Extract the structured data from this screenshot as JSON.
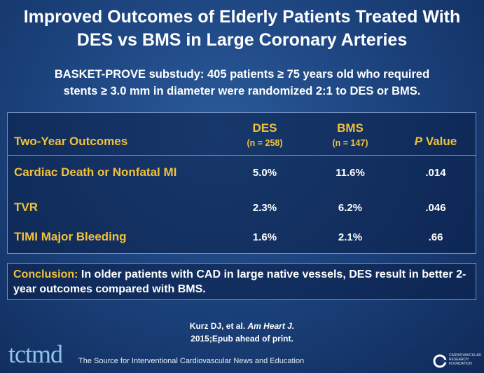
{
  "header": {
    "title_lines": [
      "Improved Outcomes of Elderly Patients Treated With",
      "DES vs BMS in Large Coronary Arteries"
    ],
    "subtitle_lines": [
      "BASKET-PROVE substudy: 405 patients ≥ 75 years old who required",
      "stents ≥ 3.0 mm in diameter were randomized 2:1 to DES or BMS."
    ]
  },
  "table": {
    "columns": [
      {
        "label": "Two-Year Outcomes"
      },
      {
        "label": "DES",
        "n": "(n = 258)"
      },
      {
        "label": "BMS",
        "n": "(n = 147)"
      },
      {
        "label_italic": "P",
        "label": "Value"
      }
    ],
    "rows": [
      [
        "Cardiac Death or Nonfatal MI",
        "5.0%",
        "11.6%",
        ".014"
      ],
      [
        "TVR",
        "2.3%",
        "6.2%",
        ".046"
      ],
      [
        "TIMI Major Bleeding",
        "1.6%",
        "2.1%",
        ".66"
      ]
    ]
  },
  "conclusion": {
    "label": "Conclusion:",
    "text": "In older patients with CAD in large native vessels, DES result in better 2-year outcomes compared with BMS."
  },
  "citation": {
    "authors": "Kurz DJ, et al.",
    "journal": "Am Heart J.",
    "details": "2015;Epub ahead of print."
  },
  "footer": {
    "logo": "tctmd",
    "tagline": "The Source for Interventional Cardiovascular News and Education",
    "org": "CARDIOVASCULAR RESEARCH FOUNDATION"
  }
}
